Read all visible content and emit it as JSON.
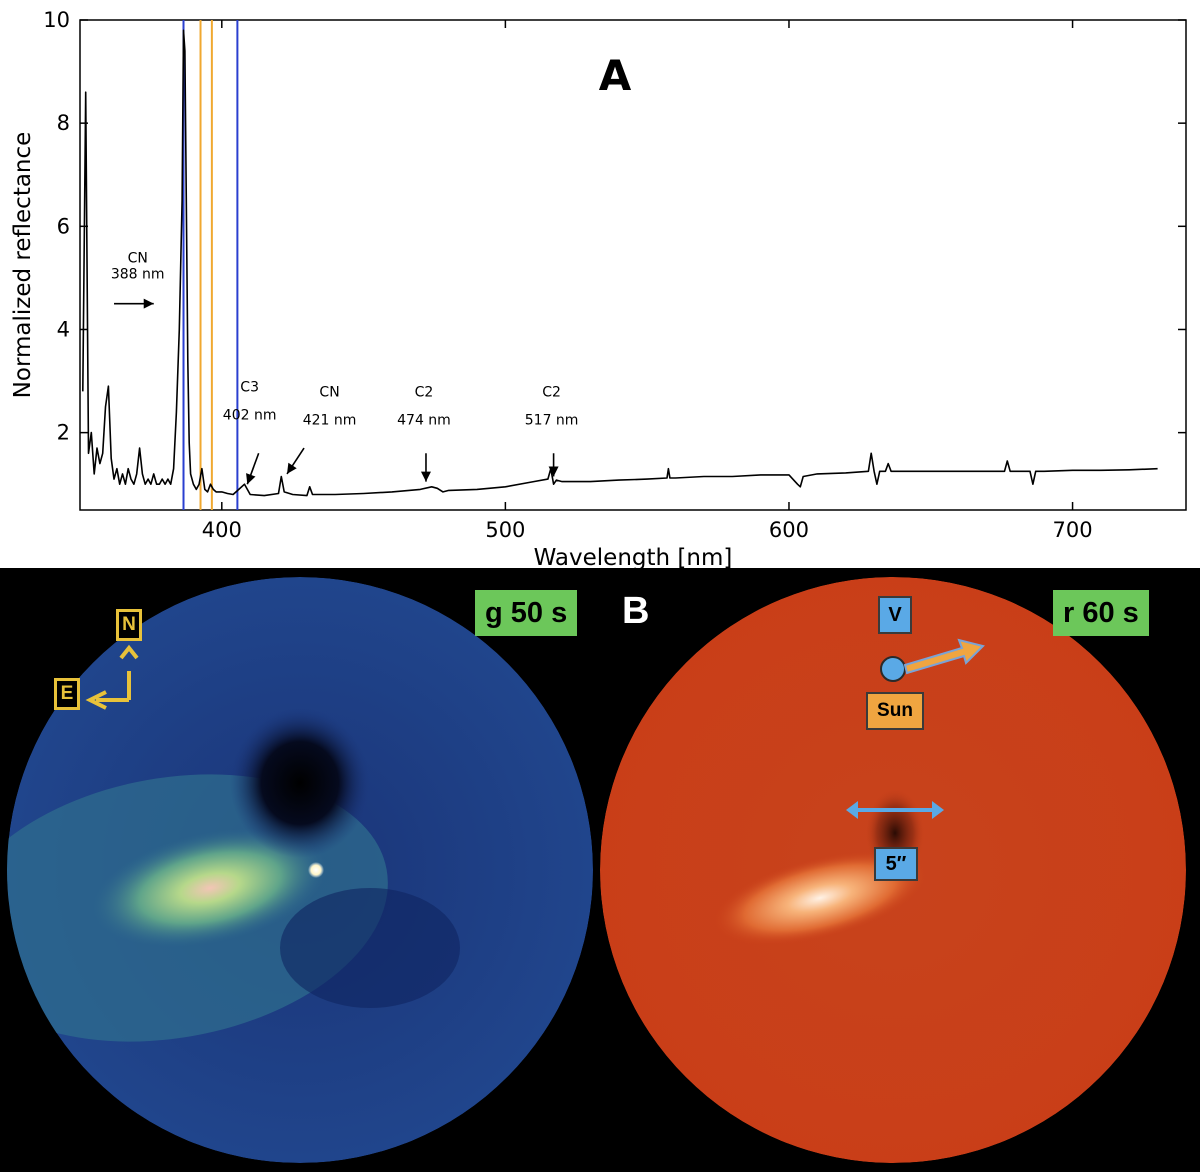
{
  "chart_data": {
    "type": "line",
    "panel_label": "A",
    "xlabel": "Wavelength [nm]",
    "ylabel": "Normalized reflectance",
    "xlim": [
      350,
      740
    ],
    "ylim": [
      0.5,
      10
    ],
    "x_ticks": [
      400,
      500,
      600,
      700
    ],
    "y_ticks": [
      2,
      4,
      6,
      8,
      10
    ],
    "grid": false,
    "vertical_lines": [
      {
        "x": 386.5,
        "color": "#2a3fd0"
      },
      {
        "x": 392.5,
        "color": "#f0a830"
      },
      {
        "x": 396.5,
        "color": "#f0a830"
      },
      {
        "x": 405.5,
        "color": "#2a3fd0"
      }
    ],
    "series": [
      {
        "x": [
          351,
          352,
          353,
          354,
          355,
          356,
          357,
          358,
          359,
          360,
          361,
          362,
          363,
          364,
          365,
          366,
          367,
          368,
          369,
          370,
          371,
          372,
          373,
          374,
          375,
          376,
          377,
          378,
          379,
          380,
          381,
          382,
          383,
          384,
          385,
          386,
          386.5,
          387,
          387.5,
          388,
          388.5,
          389,
          390,
          391,
          392,
          393,
          394,
          395,
          396,
          397,
          398,
          400,
          402,
          404,
          406,
          408,
          410,
          415,
          420,
          421,
          422,
          425,
          430,
          431,
          432,
          440,
          450,
          460,
          470,
          474,
          476,
          478,
          480,
          490,
          500,
          510,
          515,
          516,
          517,
          518,
          520,
          530,
          540,
          550,
          557,
          557.5,
          558,
          560,
          570,
          580,
          590,
          600,
          603,
          604,
          605,
          610,
          620,
          628,
          629,
          630,
          631,
          632,
          634,
          635,
          636,
          640,
          650,
          660,
          670,
          676,
          677,
          678,
          680,
          685,
          686,
          687,
          690,
          700,
          710,
          720,
          730
        ],
        "values": [
          2.8,
          8.6,
          1.6,
          2.0,
          1.2,
          1.7,
          1.4,
          1.6,
          2.5,
          2.9,
          1.5,
          1.1,
          1.3,
          1.0,
          1.2,
          1.0,
          1.3,
          1.1,
          1.0,
          1.2,
          1.7,
          1.2,
          1.0,
          1.1,
          1.0,
          1.2,
          1.0,
          1.0,
          1.1,
          1.0,
          1.1,
          1.0,
          1.3,
          2.4,
          4.0,
          6.5,
          9.8,
          9.4,
          6.5,
          3.4,
          1.8,
          1.2,
          1.0,
          0.9,
          1.0,
          1.3,
          0.9,
          0.85,
          1.0,
          0.9,
          0.85,
          0.85,
          0.82,
          0.8,
          0.9,
          1.0,
          0.8,
          0.78,
          0.82,
          1.15,
          0.85,
          0.8,
          0.78,
          0.95,
          0.8,
          0.8,
          0.82,
          0.85,
          0.9,
          0.95,
          0.92,
          0.85,
          0.88,
          0.9,
          0.95,
          1.05,
          1.1,
          1.3,
          1.0,
          1.08,
          1.05,
          1.05,
          1.08,
          1.1,
          1.12,
          1.3,
          1.12,
          1.12,
          1.15,
          1.15,
          1.18,
          1.18,
          1.0,
          0.95,
          1.15,
          1.2,
          1.22,
          1.25,
          1.6,
          1.25,
          1.0,
          1.25,
          1.25,
          1.4,
          1.25,
          1.25,
          1.25,
          1.25,
          1.25,
          1.25,
          1.45,
          1.25,
          1.25,
          1.25,
          1.0,
          1.25,
          1.25,
          1.27,
          1.27,
          1.28,
          1.3
        ]
      }
    ],
    "annotations": [
      {
        "label": "CN",
        "sub": "388 nm",
        "arrow_from": [
          362,
          4.5
        ],
        "arrow_to": [
          376,
          4.5
        ]
      },
      {
        "label": "C3",
        "sub": "402 nm",
        "arrow_from": [
          413,
          1.6
        ],
        "arrow_to": [
          409,
          1.0
        ]
      },
      {
        "label": "CN",
        "sub": "421 nm",
        "arrow_from": [
          429,
          1.7
        ],
        "arrow_to": [
          423,
          1.2
        ]
      },
      {
        "label": "C2",
        "sub": "474 nm",
        "arrow_from": [
          472,
          1.6
        ],
        "arrow_to": [
          472,
          1.05
        ]
      },
      {
        "label": "C2",
        "sub": "517 nm",
        "arrow_from": [
          517,
          1.6
        ],
        "arrow_to": [
          517,
          1.15
        ]
      }
    ]
  },
  "panel_b": {
    "label": "B",
    "left_exposure": "g 50 s",
    "right_exposure": "r 60 s",
    "north_label": "N",
    "east_label": "E",
    "velocity_label": "V",
    "sun_label": "Sun",
    "scale_label": "5″",
    "colors": {
      "left_image": "#1d3f86",
      "right_image": "#c9401a",
      "badge": "#6cc75a",
      "compass": "#e8c23a",
      "marker": "#5aa9e6",
      "sun": "#f0a540"
    },
    "icons": [
      "north-arrow-icon",
      "east-arrow-icon",
      "velocity-marker-icon",
      "sun-direction-arrow-icon",
      "scale-bar-icon"
    ]
  }
}
